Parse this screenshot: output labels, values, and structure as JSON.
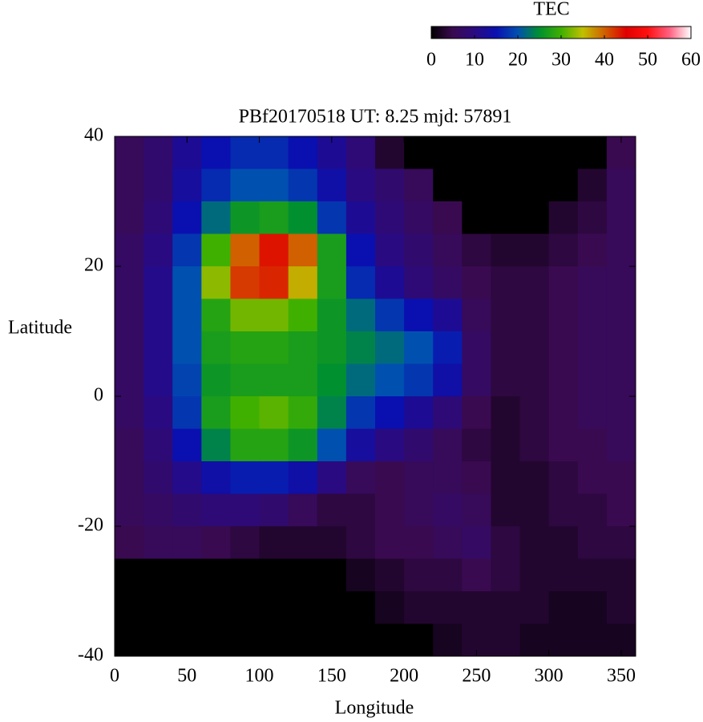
{
  "chart_data": {
    "type": "heatmap",
    "title": "PBf20170518  UT: 8.25  mjd: 57891",
    "xlabel": "Longitude",
    "ylabel": "Latitude",
    "xlim": [
      0,
      360
    ],
    "ylim": [
      -40,
      40
    ],
    "xticks": [
      0,
      50,
      100,
      150,
      200,
      250,
      300,
      350
    ],
    "yticks": [
      -40,
      -20,
      0,
      20,
      40
    ],
    "x": [
      10,
      30,
      50,
      70,
      90,
      110,
      130,
      150,
      170,
      190,
      210,
      230,
      250,
      270,
      290,
      310,
      330,
      350
    ],
    "y": [
      37.5,
      32.5,
      27.5,
      22.5,
      17.5,
      12.5,
      7.5,
      2.5,
      -2.5,
      -7.5,
      -12.5,
      -17.5,
      -22.5,
      -27.5,
      -32.5,
      -37.5
    ],
    "z": [
      [
        6,
        8,
        12,
        15,
        17,
        17,
        15,
        12,
        9,
        3,
        0,
        0,
        0,
        0,
        0,
        0,
        0,
        5
      ],
      [
        6,
        8,
        13,
        17,
        20,
        20,
        18,
        14,
        10,
        8,
        6,
        0,
        0,
        0,
        0,
        0,
        3,
        6
      ],
      [
        6,
        9,
        15,
        22,
        26,
        27,
        25,
        18,
        12,
        9,
        7,
        5,
        0,
        0,
        0,
        3,
        4,
        6
      ],
      [
        7,
        10,
        18,
        30,
        40,
        44,
        40,
        27,
        15,
        10,
        8,
        6,
        4,
        3,
        3,
        4,
        5,
        6
      ],
      [
        7,
        11,
        20,
        33,
        42,
        43,
        36,
        27,
        17,
        12,
        9,
        7,
        5,
        4,
        4,
        5,
        6,
        6
      ],
      [
        7,
        11,
        20,
        28,
        32,
        32,
        30,
        26,
        22,
        18,
        15,
        12,
        6,
        4,
        4,
        5,
        6,
        6
      ],
      [
        7,
        11,
        20,
        27,
        28,
        28,
        27,
        26,
        24,
        22,
        20,
        16,
        7,
        4,
        4,
        5,
        6,
        6
      ],
      [
        7,
        11,
        19,
        26,
        27,
        27,
        27,
        25,
        22,
        20,
        18,
        14,
        7,
        4,
        4,
        5,
        6,
        6
      ],
      [
        7,
        10,
        18,
        27,
        30,
        31,
        29,
        24,
        18,
        15,
        12,
        9,
        5,
        3,
        4,
        5,
        6,
        6
      ],
      [
        6,
        9,
        15,
        24,
        28,
        28,
        26,
        20,
        13,
        10,
        8,
        6,
        4,
        3,
        4,
        5,
        5,
        6
      ],
      [
        6,
        8,
        11,
        14,
        16,
        16,
        14,
        10,
        6,
        5,
        6,
        6,
        5,
        3,
        3,
        4,
        5,
        5
      ],
      [
        6,
        7,
        8,
        9,
        9,
        8,
        6,
        4,
        4,
        5,
        6,
        7,
        6,
        3,
        3,
        4,
        4,
        5
      ],
      [
        5,
        6,
        6,
        5,
        4,
        3,
        3,
        3,
        4,
        5,
        5,
        6,
        7,
        4,
        3,
        3,
        4,
        4
      ],
      [
        0,
        0,
        0,
        0,
        0,
        0,
        0,
        0,
        2,
        3,
        4,
        4,
        5,
        4,
        3,
        3,
        3,
        3
      ],
      [
        0,
        0,
        0,
        0,
        0,
        0,
        0,
        0,
        0,
        2,
        3,
        3,
        3,
        3,
        3,
        2,
        2,
        3
      ],
      [
        0,
        0,
        0,
        0,
        0,
        0,
        0,
        0,
        0,
        0,
        0,
        2,
        3,
        3,
        2,
        2,
        2,
        2
      ]
    ],
    "colorbar": {
      "title": "TEC",
      "lim": [
        0,
        60
      ],
      "ticks": [
        0,
        10,
        20,
        30,
        40,
        50,
        60
      ]
    },
    "colormap": [
      "#000000",
      "#3a0a50",
      "#2a0a80",
      "#0a10b0",
      "#0050b0",
      "#009030",
      "#40b000",
      "#c0c000",
      "#d06000",
      "#e00000",
      "#ff1010",
      "#ff6080",
      "#ffffff"
    ]
  }
}
